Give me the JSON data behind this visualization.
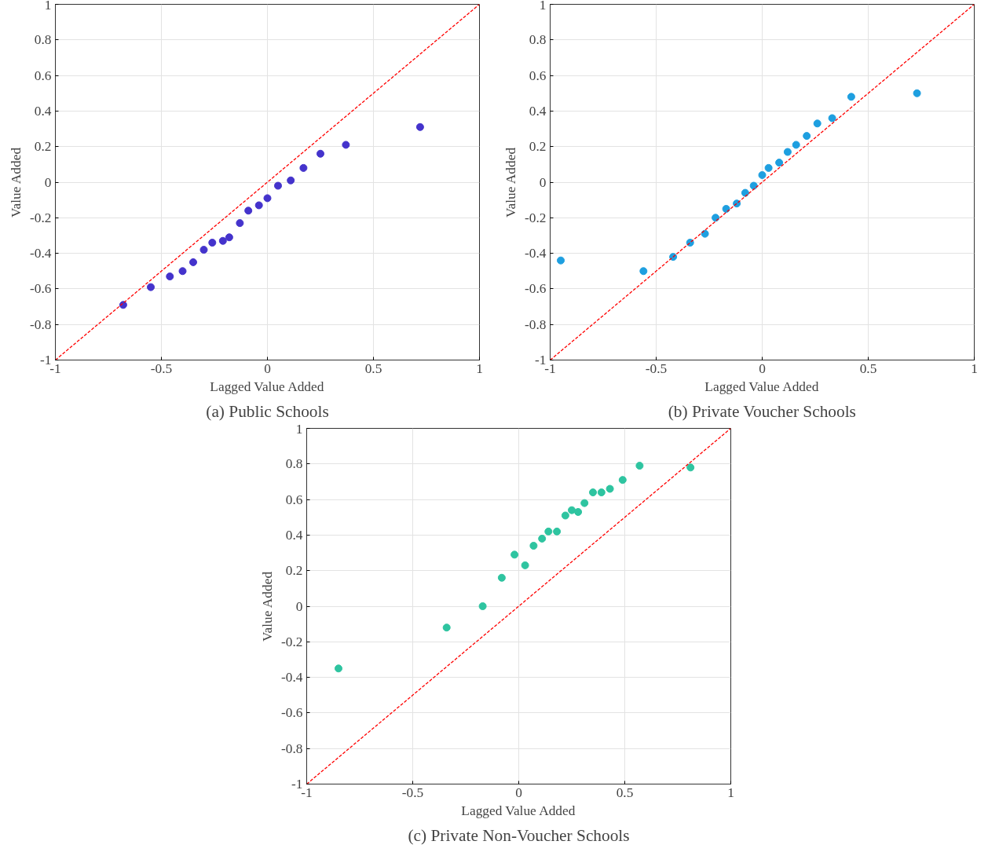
{
  "chart_data": [
    {
      "type": "scatter",
      "title": "(a) Public Schools",
      "xlabel": "Lagged Value Added",
      "ylabel": "Value Added",
      "xlim": [
        -1,
        1
      ],
      "ylim": [
        -1,
        1
      ],
      "xticks": [
        -1,
        -0.5,
        0,
        0.5,
        1
      ],
      "yticks": [
        -1,
        -0.8,
        -0.6,
        -0.4,
        -0.2,
        0,
        0.2,
        0.4,
        0.6,
        0.8,
        1
      ],
      "grid": true,
      "series": [
        {
          "marker": "circle",
          "color": "#4433cc",
          "x": [
            -0.68,
            -0.55,
            -0.46,
            -0.4,
            -0.35,
            -0.3,
            -0.26,
            -0.21,
            -0.18,
            -0.13,
            -0.09,
            -0.04,
            0.0,
            0.05,
            0.11,
            0.17,
            0.25,
            0.37,
            0.72
          ],
          "values": [
            -0.69,
            -0.59,
            -0.53,
            -0.5,
            -0.45,
            -0.38,
            -0.34,
            -0.33,
            -0.31,
            -0.23,
            -0.16,
            -0.13,
            -0.09,
            -0.02,
            0.01,
            0.08,
            0.16,
            0.21,
            0.31
          ]
        },
        {
          "type": "line",
          "color": "#ff0000",
          "line_style": "dashed",
          "x": [
            -1,
            1
          ],
          "values": [
            -1,
            1
          ]
        }
      ]
    },
    {
      "type": "scatter",
      "title": "(b) Private Voucher Schools",
      "xlabel": "Lagged Value Added",
      "ylabel": "Value Added",
      "xlim": [
        -1,
        1
      ],
      "ylim": [
        -1,
        1
      ],
      "xticks": [
        -1,
        -0.5,
        0,
        0.5,
        1
      ],
      "yticks": [
        -1,
        -0.8,
        -0.6,
        -0.4,
        -0.2,
        0,
        0.2,
        0.4,
        0.6,
        0.8,
        1
      ],
      "grid": true,
      "series": [
        {
          "marker": "circle",
          "color": "#1e9fe0",
          "x": [
            -0.95,
            -0.56,
            -0.42,
            -0.34,
            -0.27,
            -0.22,
            -0.17,
            -0.12,
            -0.08,
            -0.04,
            0.0,
            0.03,
            0.08,
            0.12,
            0.16,
            0.21,
            0.26,
            0.33,
            0.42,
            0.73
          ],
          "values": [
            -0.44,
            -0.5,
            -0.42,
            -0.34,
            -0.29,
            -0.2,
            -0.15,
            -0.12,
            -0.06,
            -0.02,
            0.04,
            0.08,
            0.11,
            0.17,
            0.21,
            0.26,
            0.33,
            0.36,
            0.48,
            0.5
          ]
        },
        {
          "type": "line",
          "color": "#ff0000",
          "line_style": "dashed",
          "x": [
            -1,
            1
          ],
          "values": [
            -1,
            1
          ]
        }
      ]
    },
    {
      "type": "scatter",
      "title": "(c) Private Non-Voucher Schools",
      "xlabel": "Lagged Value Added",
      "ylabel": "Value Added",
      "xlim": [
        -1,
        1
      ],
      "ylim": [
        -1,
        1
      ],
      "xticks": [
        -1,
        -0.5,
        0,
        0.5,
        1
      ],
      "yticks": [
        -1,
        -0.8,
        -0.6,
        -0.4,
        -0.2,
        0,
        0.2,
        0.4,
        0.6,
        0.8,
        1
      ],
      "grid": true,
      "series": [
        {
          "marker": "circle",
          "color": "#2ec4a0",
          "x": [
            -0.85,
            -0.34,
            -0.17,
            -0.08,
            -0.02,
            0.03,
            0.07,
            0.11,
            0.14,
            0.18,
            0.22,
            0.25,
            0.28,
            0.31,
            0.35,
            0.39,
            0.43,
            0.49,
            0.57,
            0.81
          ],
          "values": [
            -0.35,
            -0.12,
            0.0,
            0.16,
            0.29,
            0.23,
            0.34,
            0.38,
            0.42,
            0.42,
            0.51,
            0.54,
            0.53,
            0.58,
            0.64,
            0.64,
            0.66,
            0.71,
            0.79,
            0.78
          ]
        },
        {
          "type": "line",
          "color": "#ff0000",
          "line_style": "dashed",
          "x": [
            -1,
            1
          ],
          "values": [
            -1,
            1
          ]
        }
      ]
    }
  ]
}
